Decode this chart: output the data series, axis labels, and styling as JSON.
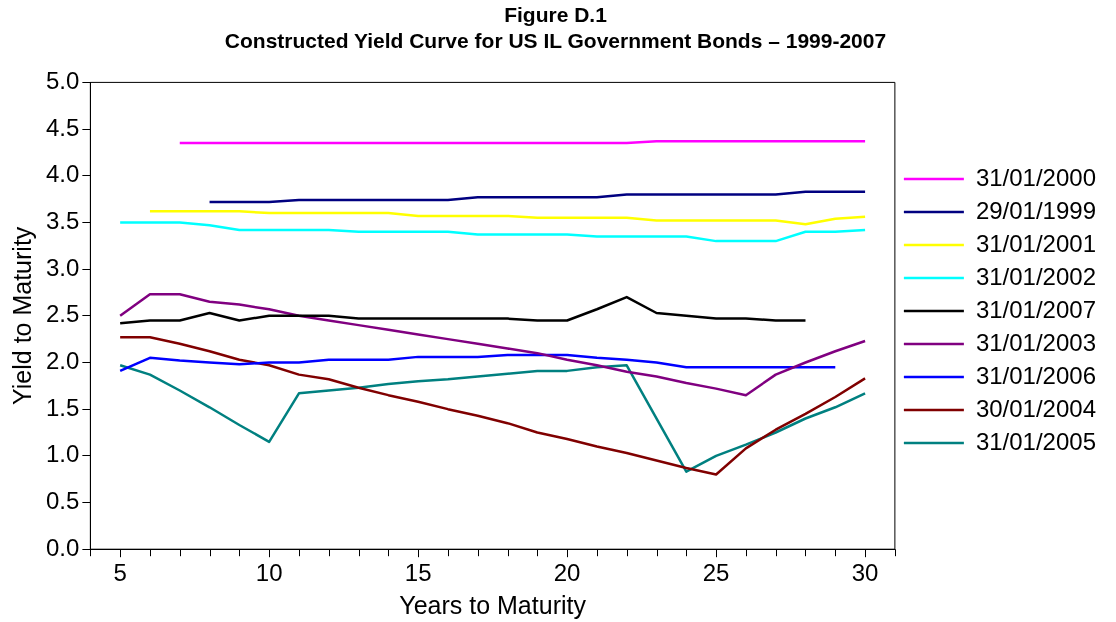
{
  "chart_data": {
    "type": "line",
    "title": "Figure D.1",
    "subtitle": "Constructed Yield Curve for US IL Government Bonds – 1999-2007",
    "xlabel": "Years to Maturity",
    "ylabel": "Yield to Maturity",
    "xlim": [
      4,
      31
    ],
    "xticks": [
      5,
      10,
      15,
      20,
      25,
      30
    ],
    "ylim": [
      0,
      5
    ],
    "yticks": [
      {
        "value": 0,
        "label": "0.0"
      },
      {
        "value": 0.5,
        "label": "0.5"
      },
      {
        "value": 1,
        "label": "1.0"
      },
      {
        "value": 1.5,
        "label": "1.5"
      },
      {
        "value": 2,
        "label": "2.0"
      },
      {
        "value": 2.5,
        "label": "2.5"
      },
      {
        "value": 3,
        "label": "3.0"
      },
      {
        "value": 3.5,
        "label": "3.5"
      },
      {
        "value": 4,
        "label": "4.0"
      },
      {
        "value": 4.5,
        "label": "4.5"
      },
      {
        "value": 5,
        "label": "5.0"
      }
    ],
    "grid": false,
    "legend": "right",
    "marker": "none",
    "line_style": "solid",
    "series": [
      {
        "name": "31/01/2000",
        "color": "#ff00ff",
        "x": [
          7,
          8,
          9,
          10,
          11,
          12,
          13,
          14,
          15,
          16,
          17,
          18,
          19,
          20,
          21,
          22,
          23,
          24,
          25,
          26,
          27,
          28,
          29,
          30
        ],
        "values": [
          4.35,
          4.35,
          4.35,
          4.35,
          4.35,
          4.35,
          4.35,
          4.35,
          4.35,
          4.35,
          4.35,
          4.35,
          4.35,
          4.35,
          4.35,
          4.35,
          4.37,
          4.37,
          4.37,
          4.37,
          4.37,
          4.37,
          4.37,
          4.37
        ]
      },
      {
        "name": "29/01/1999",
        "color": "#000080",
        "x": [
          8,
          9,
          10,
          11,
          12,
          13,
          14,
          15,
          16,
          17,
          18,
          19,
          20,
          21,
          22,
          23,
          24,
          25,
          26,
          27,
          28,
          29,
          30
        ],
        "values": [
          3.72,
          3.72,
          3.72,
          3.74,
          3.74,
          3.74,
          3.74,
          3.74,
          3.74,
          3.77,
          3.77,
          3.77,
          3.77,
          3.77,
          3.8,
          3.8,
          3.8,
          3.8,
          3.8,
          3.8,
          3.83,
          3.83,
          3.83
        ]
      },
      {
        "name": "31/01/2001",
        "color": "#ffff00",
        "x": [
          6,
          7,
          8,
          9,
          10,
          11,
          12,
          13,
          14,
          15,
          16,
          17,
          18,
          19,
          20,
          21,
          22,
          23,
          24,
          25,
          26,
          27,
          28,
          29,
          30
        ],
        "values": [
          3.62,
          3.62,
          3.62,
          3.62,
          3.6,
          3.6,
          3.6,
          3.6,
          3.6,
          3.57,
          3.57,
          3.57,
          3.57,
          3.55,
          3.55,
          3.55,
          3.55,
          3.52,
          3.52,
          3.52,
          3.52,
          3.52,
          3.48,
          3.54,
          3.56
        ]
      },
      {
        "name": "31/01/2002",
        "color": "#00ffff",
        "x": [
          5,
          6,
          7,
          8,
          9,
          10,
          11,
          12,
          13,
          14,
          15,
          16,
          17,
          18,
          19,
          20,
          21,
          22,
          23,
          24,
          25,
          26,
          27,
          28,
          29,
          30
        ],
        "values": [
          3.5,
          3.5,
          3.5,
          3.47,
          3.42,
          3.42,
          3.42,
          3.42,
          3.4,
          3.4,
          3.4,
          3.4,
          3.37,
          3.37,
          3.37,
          3.37,
          3.35,
          3.35,
          3.35,
          3.35,
          3.3,
          3.3,
          3.3,
          3.4,
          3.4,
          3.42
        ]
      },
      {
        "name": "31/01/2007",
        "color": "#000000",
        "x": [
          5,
          6,
          7,
          8,
          9,
          10,
          11,
          12,
          13,
          14,
          15,
          16,
          17,
          18,
          19,
          20,
          21,
          22,
          23,
          24,
          25,
          26,
          27,
          28
        ],
        "values": [
          2.42,
          2.45,
          2.45,
          2.53,
          2.45,
          2.5,
          2.5,
          2.5,
          2.47,
          2.47,
          2.47,
          2.47,
          2.47,
          2.47,
          2.45,
          2.45,
          2.57,
          2.7,
          2.53,
          2.5,
          2.47,
          2.47,
          2.45,
          2.45
        ]
      },
      {
        "name": "31/01/2003",
        "color": "#800080",
        "x": [
          5,
          6,
          7,
          8,
          9,
          10,
          11,
          12,
          13,
          14,
          15,
          16,
          17,
          18,
          19,
          20,
          21,
          22,
          23,
          24,
          25,
          26,
          27,
          28,
          29,
          30
        ],
        "values": [
          2.5,
          2.73,
          2.73,
          2.65,
          2.62,
          2.57,
          2.5,
          2.45,
          2.4,
          2.35,
          2.3,
          2.25,
          2.2,
          2.15,
          2.1,
          2.03,
          1.97,
          1.9,
          1.85,
          1.78,
          1.72,
          1.65,
          1.87,
          2,
          2.12,
          2.23
        ]
      },
      {
        "name": "31/01/2006",
        "color": "#0000ff",
        "x": [
          5,
          6,
          7,
          8,
          9,
          10,
          11,
          12,
          13,
          14,
          15,
          16,
          17,
          18,
          19,
          20,
          21,
          22,
          23,
          24,
          25,
          26,
          27,
          28,
          29
        ],
        "values": [
          1.91,
          2.05,
          2.02,
          2,
          1.98,
          2,
          2,
          2.03,
          2.03,
          2.03,
          2.06,
          2.06,
          2.06,
          2.08,
          2.08,
          2.08,
          2.05,
          2.03,
          2,
          1.95,
          1.95,
          1.95,
          1.95,
          1.95,
          1.95
        ]
      },
      {
        "name": "30/01/2004",
        "color": "#800000",
        "x": [
          5,
          6,
          7,
          8,
          9,
          10,
          11,
          12,
          13,
          14,
          15,
          16,
          17,
          18,
          19,
          20,
          21,
          22,
          23,
          24,
          25,
          26,
          27,
          28,
          29,
          30
        ],
        "values": [
          2.27,
          2.27,
          2.2,
          2.12,
          2.03,
          1.97,
          1.87,
          1.82,
          1.73,
          1.65,
          1.58,
          1.5,
          1.43,
          1.35,
          1.25,
          1.18,
          1.1,
          1.03,
          0.95,
          0.87,
          0.8,
          1.08,
          1.28,
          1.45,
          1.63,
          1.83
        ]
      },
      {
        "name": "31/01/2005",
        "color": "#008080",
        "x": [
          5,
          6,
          7,
          8,
          9,
          10,
          11,
          12,
          13,
          14,
          15,
          16,
          17,
          18,
          19,
          20,
          21,
          22,
          24,
          25,
          26,
          27,
          28,
          29,
          30
        ],
        "values": [
          1.97,
          1.87,
          1.7,
          1.52,
          1.33,
          1.15,
          1.67,
          1.7,
          1.73,
          1.77,
          1.8,
          1.82,
          1.85,
          1.88,
          1.91,
          1.91,
          1.95,
          1.97,
          0.83,
          1,
          1.12,
          1.25,
          1.4,
          1.52,
          1.67
        ]
      }
    ]
  }
}
